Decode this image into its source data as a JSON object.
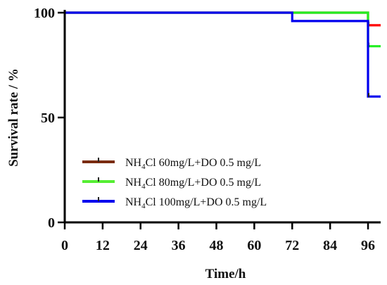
{
  "chart_data": {
    "type": "line",
    "step": true,
    "xlabel": "Time/h",
    "ylabel": "Survival rate / %",
    "xlim": [
      0,
      100
    ],
    "ylim": [
      0,
      100
    ],
    "x_ticks": [
      0,
      12,
      24,
      36,
      48,
      60,
      72,
      84,
      96
    ],
    "y_ticks": [
      0,
      50,
      100
    ],
    "legend_position": "lower-left",
    "series": [
      {
        "name": "NH4Cl 60mg/L+DO 0.5 mg/L",
        "name_parts": {
          "pre": "NH",
          "sub": "4",
          "post": "Cl 60mg/L+DO 0.5 mg/L"
        },
        "color": "#ff0000",
        "legend_color": "#7a2c10",
        "points": [
          [
            0,
            100
          ],
          [
            96,
            100
          ],
          [
            96,
            94
          ],
          [
            100,
            94
          ]
        ]
      },
      {
        "name": "NH4Cl 80mg/L+DO 0.5 mg/L",
        "name_parts": {
          "pre": "NH",
          "sub": "4",
          "post": "Cl 80mg/L+DO 0.5 mg/L"
        },
        "color": "#22ee22",
        "legend_color": "#55ee33",
        "points": [
          [
            0,
            100
          ],
          [
            96,
            100
          ],
          [
            96,
            84
          ],
          [
            100,
            84
          ]
        ]
      },
      {
        "name": "NH4Cl 100mg/L+DO 0.5 mg/L",
        "name_parts": {
          "pre": "NH",
          "sub": "4",
          "post": "Cl 100mg/L+DO 0.5 mg/L"
        },
        "color": "#0000ee",
        "legend_color": "#0000ee",
        "points": [
          [
            0,
            100
          ],
          [
            72,
            100
          ],
          [
            72,
            96
          ],
          [
            96,
            96
          ],
          [
            96,
            60
          ],
          [
            100,
            60
          ]
        ]
      }
    ]
  }
}
